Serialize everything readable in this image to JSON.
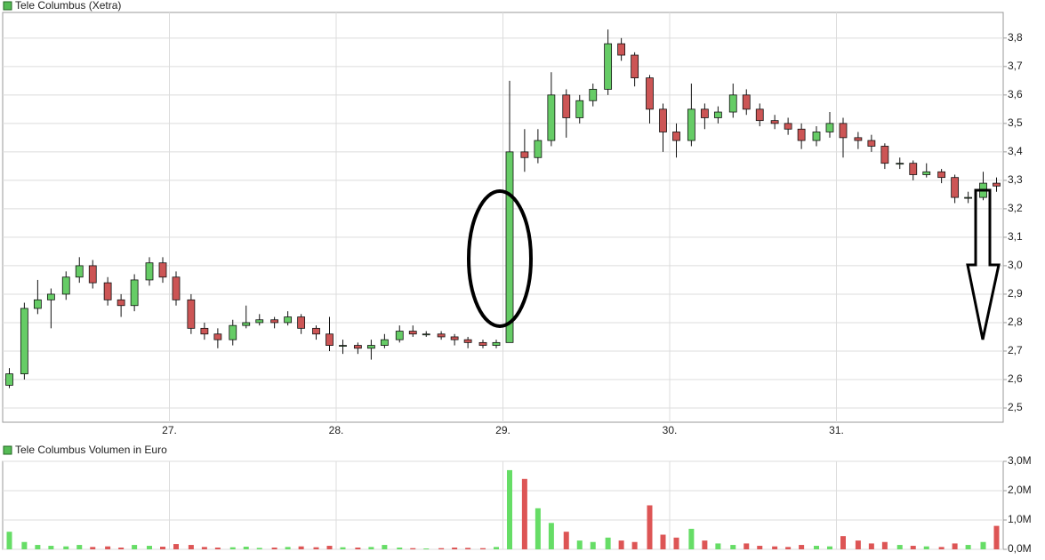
{
  "chart_data": [
    {
      "type": "candlestick",
      "title": "Tele Columbus (Xetra)",
      "color": "#55bb55",
      "up_color": "#66cc66",
      "down_color": "#cc5555",
      "x": [
        26.04,
        26.13,
        26.21,
        26.29,
        26.38,
        26.46,
        26.54,
        26.63,
        26.71,
        26.79,
        26.88,
        26.96,
        27.04,
        27.13,
        27.21,
        27.29,
        27.38,
        27.46,
        27.54,
        27.63,
        27.71,
        27.79,
        27.88,
        27.96,
        28.04,
        28.13,
        28.21,
        28.29,
        28.38,
        28.46,
        28.54,
        28.63,
        28.71,
        28.79,
        28.88,
        28.96,
        29.04,
        29.13,
        29.21,
        29.29,
        29.38,
        29.46,
        29.54,
        29.63,
        29.71,
        29.79,
        29.88,
        29.96,
        30.04,
        30.13,
        30.21,
        30.29,
        30.38,
        30.46,
        30.54,
        30.63,
        30.71,
        30.79,
        30.88,
        30.96,
        31.04,
        31.13,
        31.21,
        31.29,
        31.38,
        31.46,
        31.54,
        31.63,
        31.71,
        31.79,
        31.88,
        31.96
      ],
      "open": [
        2.58,
        2.62,
        2.85,
        2.88,
        2.9,
        2.96,
        3.0,
        2.94,
        2.88,
        2.86,
        2.95,
        3.01,
        2.96,
        2.88,
        2.78,
        2.76,
        2.74,
        2.79,
        2.8,
        2.81,
        2.8,
        2.82,
        2.78,
        2.76,
        2.72,
        2.72,
        2.71,
        2.72,
        2.74,
        2.77,
        2.76,
        2.76,
        2.75,
        2.74,
        2.73,
        2.72,
        2.73,
        3.4,
        3.38,
        3.44,
        3.6,
        3.52,
        3.58,
        3.62,
        3.78,
        3.74,
        3.66,
        3.55,
        3.47,
        3.44,
        3.55,
        3.52,
        3.54,
        3.6,
        3.55,
        3.51,
        3.5,
        3.48,
        3.44,
        3.47,
        3.5,
        3.45,
        3.44,
        3.42,
        3.36,
        3.36,
        3.32,
        3.33,
        3.31,
        3.24,
        3.24,
        3.29
      ],
      "high": [
        2.64,
        2.87,
        2.95,
        2.92,
        2.98,
        3.03,
        3.02,
        2.96,
        2.9,
        2.97,
        3.03,
        3.03,
        2.98,
        2.9,
        2.8,
        2.78,
        2.81,
        2.86,
        2.83,
        2.82,
        2.84,
        2.83,
        2.79,
        2.82,
        2.74,
        2.73,
        2.74,
        2.76,
        2.79,
        2.79,
        2.77,
        2.77,
        2.76,
        2.75,
        2.74,
        2.74,
        3.65,
        3.48,
        3.48,
        3.68,
        3.62,
        3.6,
        3.64,
        3.83,
        3.8,
        3.75,
        3.67,
        3.57,
        3.5,
        3.64,
        3.57,
        3.56,
        3.64,
        3.62,
        3.57,
        3.53,
        3.52,
        3.5,
        3.49,
        3.54,
        3.52,
        3.47,
        3.46,
        3.43,
        3.38,
        3.37,
        3.36,
        3.34,
        3.32,
        3.26,
        3.33,
        3.31
      ],
      "low": [
        2.57,
        2.6,
        2.83,
        2.78,
        2.88,
        2.94,
        2.92,
        2.86,
        2.82,
        2.84,
        2.93,
        2.94,
        2.86,
        2.76,
        2.74,
        2.71,
        2.72,
        2.78,
        2.79,
        2.78,
        2.79,
        2.76,
        2.74,
        2.7,
        2.69,
        2.69,
        2.67,
        2.71,
        2.73,
        2.75,
        2.75,
        2.74,
        2.72,
        2.71,
        2.71,
        2.71,
        2.73,
        3.33,
        3.36,
        3.42,
        3.45,
        3.5,
        3.56,
        3.6,
        3.72,
        3.63,
        3.5,
        3.4,
        3.38,
        3.42,
        3.48,
        3.5,
        3.52,
        3.53,
        3.49,
        3.48,
        3.46,
        3.41,
        3.42,
        3.45,
        3.38,
        3.41,
        3.4,
        3.34,
        3.34,
        3.3,
        3.31,
        3.29,
        3.22,
        3.22,
        3.23,
        3.26
      ],
      "close": [
        2.62,
        2.85,
        2.88,
        2.9,
        2.96,
        3.0,
        2.94,
        2.88,
        2.86,
        2.95,
        3.01,
        2.96,
        2.88,
        2.78,
        2.76,
        2.74,
        2.79,
        2.8,
        2.81,
        2.8,
        2.82,
        2.78,
        2.76,
        2.72,
        2.72,
        2.71,
        2.72,
        2.74,
        2.77,
        2.76,
        2.76,
        2.75,
        2.74,
        2.73,
        2.72,
        2.73,
        3.4,
        3.38,
        3.44,
        3.6,
        3.52,
        3.58,
        3.62,
        3.78,
        3.74,
        3.66,
        3.55,
        3.47,
        3.44,
        3.55,
        3.52,
        3.54,
        3.6,
        3.55,
        3.51,
        3.5,
        3.48,
        3.44,
        3.47,
        3.5,
        3.45,
        3.44,
        3.42,
        3.36,
        3.36,
        3.32,
        3.33,
        3.31,
        3.24,
        3.24,
        3.29,
        3.28
      ],
      "xlim": [
        26,
        32
      ],
      "xticks": [
        {
          "value": 27,
          "label": "27."
        },
        {
          "value": 28,
          "label": "28."
        },
        {
          "value": 29,
          "label": "29."
        },
        {
          "value": 30,
          "label": "30."
        },
        {
          "value": 31,
          "label": "31."
        }
      ],
      "ylim": [
        2.45,
        3.89
      ],
      "yticks": [
        {
          "value": 2.5,
          "label": "2,5"
        },
        {
          "value": 2.6,
          "label": "2,6"
        },
        {
          "value": 2.7,
          "label": "2,7"
        },
        {
          "value": 2.8,
          "label": "2,8"
        },
        {
          "value": 2.9,
          "label": "2,9"
        },
        {
          "value": 3.0,
          "label": "3,0"
        },
        {
          "value": 3.1,
          "label": "3,1"
        },
        {
          "value": 3.2,
          "label": "3,2"
        },
        {
          "value": 3.3,
          "label": "3,3"
        },
        {
          "value": 3.4,
          "label": "3,4"
        },
        {
          "value": 3.5,
          "label": "3,5"
        },
        {
          "value": 3.6,
          "label": "3,6"
        },
        {
          "value": 3.7,
          "label": "3,7"
        },
        {
          "value": 3.8,
          "label": "3,8"
        }
      ],
      "grid": true
    },
    {
      "type": "volume",
      "title": "Tele Columbus Volumen in Euro",
      "color": "#55bb55",
      "up_color": "#66dd66",
      "down_color": "#dd5555",
      "x": [
        26.04,
        26.13,
        26.21,
        26.29,
        26.38,
        26.46,
        26.54,
        26.63,
        26.71,
        26.79,
        26.88,
        26.96,
        27.04,
        27.13,
        27.21,
        27.29,
        27.38,
        27.46,
        27.54,
        27.63,
        27.71,
        27.79,
        27.88,
        27.96,
        28.04,
        28.13,
        28.21,
        28.29,
        28.38,
        28.46,
        28.54,
        28.63,
        28.71,
        28.79,
        28.88,
        28.96,
        29.04,
        29.13,
        29.21,
        29.29,
        29.38,
        29.46,
        29.54,
        29.63,
        29.71,
        29.79,
        29.88,
        29.96,
        30.04,
        30.13,
        30.21,
        30.29,
        30.38,
        30.46,
        30.54,
        30.63,
        30.71,
        30.79,
        30.88,
        30.96,
        31.04,
        31.13,
        31.21,
        31.29,
        31.38,
        31.46,
        31.54,
        31.63,
        31.71,
        31.79,
        31.88,
        31.96
      ],
      "values": [
        600000,
        250000,
        150000,
        120000,
        100000,
        150000,
        80000,
        100000,
        60000,
        150000,
        120000,
        90000,
        180000,
        150000,
        80000,
        60000,
        70000,
        90000,
        50000,
        60000,
        80000,
        100000,
        70000,
        120000,
        70000,
        60000,
        80000,
        150000,
        60000,
        40000,
        30000,
        40000,
        60000,
        50000,
        40000,
        80000,
        2700000,
        2400000,
        1400000,
        900000,
        600000,
        300000,
        250000,
        400000,
        300000,
        250000,
        1500000,
        500000,
        400000,
        700000,
        300000,
        200000,
        150000,
        200000,
        120000,
        100000,
        80000,
        150000,
        120000,
        100000,
        450000,
        300000,
        200000,
        250000,
        150000,
        120000,
        100000,
        80000,
        200000,
        150000,
        250000,
        800000
      ],
      "xlim": [
        26,
        32
      ],
      "ylim": [
        0,
        3000000
      ],
      "yticks": [
        {
          "value": 0,
          "label": "0,0M"
        },
        {
          "value": 1000000,
          "label": "1,0M"
        },
        {
          "value": 2000000,
          "label": "2,0M"
        },
        {
          "value": 3000000,
          "label": "3,0M"
        }
      ],
      "grid": true
    }
  ]
}
